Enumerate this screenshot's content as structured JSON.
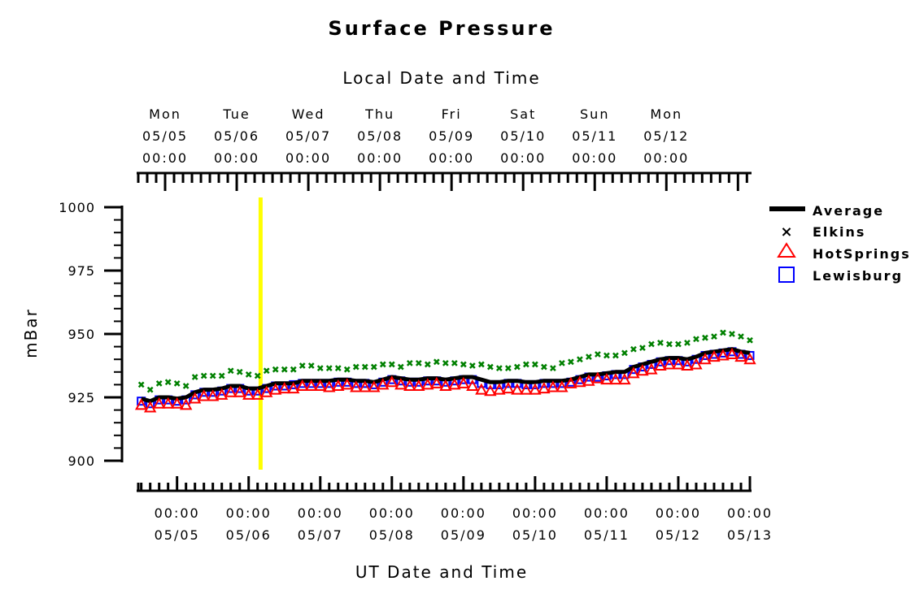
{
  "chart_data": {
    "type": "line",
    "title": "Surface Pressure",
    "top_axis_label": "Local Date and Time",
    "xlabel": "UT Date and Time",
    "ylabel": "mBar",
    "ylim": [
      900,
      1000
    ],
    "yticks": [
      "900",
      "925",
      "950",
      "975",
      "1000"
    ],
    "xlim": [
      "2008-05-04T11:00",
      "2008-05-13T00:00"
    ],
    "bottom_ticks": [
      {
        "time": "00:00",
        "date": "05/05"
      },
      {
        "time": "00:00",
        "date": "05/06"
      },
      {
        "time": "00:00",
        "date": "05/07"
      },
      {
        "time": "00:00",
        "date": "05/08"
      },
      {
        "time": "00:00",
        "date": "05/09"
      },
      {
        "time": "00:00",
        "date": "05/10"
      },
      {
        "time": "00:00",
        "date": "05/11"
      },
      {
        "time": "00:00",
        "date": "05/12"
      },
      {
        "time": "00:00",
        "date": "05/13"
      }
    ],
    "top_ticks": [
      {
        "day": "Mon",
        "date": "05/05",
        "time": "00:00"
      },
      {
        "day": "Tue",
        "date": "05/06",
        "time": "00:00"
      },
      {
        "day": "Wed",
        "date": "05/07",
        "time": "00:00"
      },
      {
        "day": "Thu",
        "date": "05/08",
        "time": "00:00"
      },
      {
        "day": "Fri",
        "date": "05/09",
        "time": "00:00"
      },
      {
        "day": "Sat",
        "date": "05/10",
        "time": "00:00"
      },
      {
        "day": "Sun",
        "date": "05/11",
        "time": "00:00"
      },
      {
        "day": "Mon",
        "date": "05/12",
        "time": "00:00"
      }
    ],
    "marker_time": "2008-05-06T04:00",
    "legend_position": "right",
    "x": [
      "2008-05-04T12:00",
      "2008-05-04T15:00",
      "2008-05-04T18:00",
      "2008-05-04T21:00",
      "2008-05-05T00:00",
      "2008-05-05T03:00",
      "2008-05-05T06:00",
      "2008-05-05T09:00",
      "2008-05-05T12:00",
      "2008-05-05T15:00",
      "2008-05-05T18:00",
      "2008-05-05T21:00",
      "2008-05-06T00:00",
      "2008-05-06T03:00",
      "2008-05-06T06:00",
      "2008-05-06T09:00",
      "2008-05-06T12:00",
      "2008-05-06T15:00",
      "2008-05-06T18:00",
      "2008-05-06T21:00",
      "2008-05-07T00:00",
      "2008-05-07T03:00",
      "2008-05-07T06:00",
      "2008-05-07T09:00",
      "2008-05-07T12:00",
      "2008-05-07T15:00",
      "2008-05-07T18:00",
      "2008-05-07T21:00",
      "2008-05-08T00:00",
      "2008-05-08T03:00",
      "2008-05-08T06:00",
      "2008-05-08T09:00",
      "2008-05-08T12:00",
      "2008-05-08T15:00",
      "2008-05-08T18:00",
      "2008-05-08T21:00",
      "2008-05-09T00:00",
      "2008-05-09T03:00",
      "2008-05-09T06:00",
      "2008-05-09T09:00",
      "2008-05-09T12:00",
      "2008-05-09T15:00",
      "2008-05-09T18:00",
      "2008-05-09T21:00",
      "2008-05-10T00:00",
      "2008-05-10T03:00",
      "2008-05-10T06:00",
      "2008-05-10T09:00",
      "2008-05-10T12:00",
      "2008-05-10T15:00",
      "2008-05-10T18:00",
      "2008-05-10T21:00",
      "2008-05-11T00:00",
      "2008-05-11T03:00",
      "2008-05-11T06:00",
      "2008-05-11T09:00",
      "2008-05-11T12:00",
      "2008-05-11T15:00",
      "2008-05-11T18:00",
      "2008-05-11T21:00",
      "2008-05-12T00:00",
      "2008-05-12T03:00",
      "2008-05-12T06:00",
      "2008-05-12T09:00",
      "2008-05-12T12:00",
      "2008-05-12T15:00",
      "2008-05-12T18:00",
      "2008-05-12T21:00",
      "2008-05-13T00:00"
    ],
    "series": [
      {
        "name": "Average",
        "marker": "line",
        "color": "#000000",
        "values": [
          924.5,
          923.5,
          925,
          925,
          924.5,
          925,
          927,
          928,
          928,
          928.5,
          929.5,
          929.5,
          928.5,
          928.5,
          929.5,
          930.5,
          930.5,
          930.5,
          931.5,
          931.5,
          931.5,
          931.5,
          932,
          932,
          931.5,
          931.5,
          931,
          932,
          933,
          932.5,
          932,
          932,
          932.5,
          932.5,
          932,
          932.5,
          933,
          933,
          932,
          931,
          931,
          931.5,
          931.5,
          931,
          931,
          931.5,
          931.5,
          931.5,
          932,
          933,
          934,
          934,
          934.5,
          935,
          935,
          937,
          938,
          939,
          940,
          940.5,
          940.5,
          940,
          941,
          942.5,
          943,
          943.5,
          944,
          943,
          942.5
        ]
      },
      {
        "name": "Elkins",
        "marker": "x",
        "color": "#008000",
        "values": [
          930,
          928,
          930.5,
          931,
          930.5,
          929.5,
          933,
          933.5,
          933.5,
          933.5,
          935.5,
          935,
          934,
          933.5,
          935.5,
          936,
          936,
          936,
          937.5,
          937.5,
          936.5,
          936.5,
          936.5,
          936,
          937,
          937,
          937,
          938,
          938,
          937,
          938.5,
          938.5,
          938,
          939,
          938.5,
          938.5,
          938,
          937.5,
          938,
          937,
          936.5,
          936.5,
          937,
          938,
          938,
          937,
          936.5,
          938.5,
          939,
          940,
          941,
          942,
          941.5,
          941.5,
          942.5,
          944,
          944.5,
          946,
          946.5,
          946,
          946,
          946.5,
          948,
          948.5,
          949,
          950.5,
          950,
          949,
          947.5
        ]
      },
      {
        "name": "HotSprings",
        "marker": "triangle",
        "color": "#ff0000",
        "values": [
          922,
          921,
          922.5,
          922.5,
          922.5,
          922,
          924.5,
          925.5,
          925.5,
          926,
          927,
          927,
          926,
          926,
          927,
          928,
          928.5,
          928.5,
          929.5,
          929.5,
          929.5,
          929,
          929.5,
          930,
          929,
          929,
          929,
          930,
          931,
          930,
          929.5,
          929.5,
          930,
          930.5,
          929.5,
          930,
          930.5,
          929.5,
          928,
          927.5,
          928,
          928.5,
          928,
          928,
          928,
          928.5,
          929,
          929,
          930.5,
          931,
          931.5,
          932.5,
          932,
          932,
          932,
          934.5,
          935.5,
          936,
          937.5,
          938,
          938,
          937.5,
          938,
          940,
          941,
          941.5,
          942,
          941,
          940
        ]
      },
      {
        "name": "Lewisburg",
        "marker": "square",
        "color": "#0000ff",
        "values": [
          923.5,
          922.5,
          924,
          924,
          923.5,
          924,
          926,
          927,
          927,
          927.5,
          928.5,
          928.5,
          927.5,
          927.5,
          928.5,
          929.5,
          929.5,
          930,
          930.5,
          930.5,
          930.5,
          930.5,
          931,
          931,
          930.5,
          930.5,
          930,
          931,
          932,
          931.5,
          931,
          931,
          931.5,
          931.5,
          931,
          931.5,
          932,
          932,
          930.5,
          930,
          930,
          930.5,
          930.5,
          930,
          930,
          930.5,
          930.5,
          930.5,
          931,
          932,
          933,
          933,
          933.5,
          934,
          934,
          936,
          937,
          938,
          939,
          939.5,
          939.5,
          939,
          940,
          941.5,
          942,
          942.5,
          943,
          942,
          941.5
        ]
      }
    ]
  }
}
